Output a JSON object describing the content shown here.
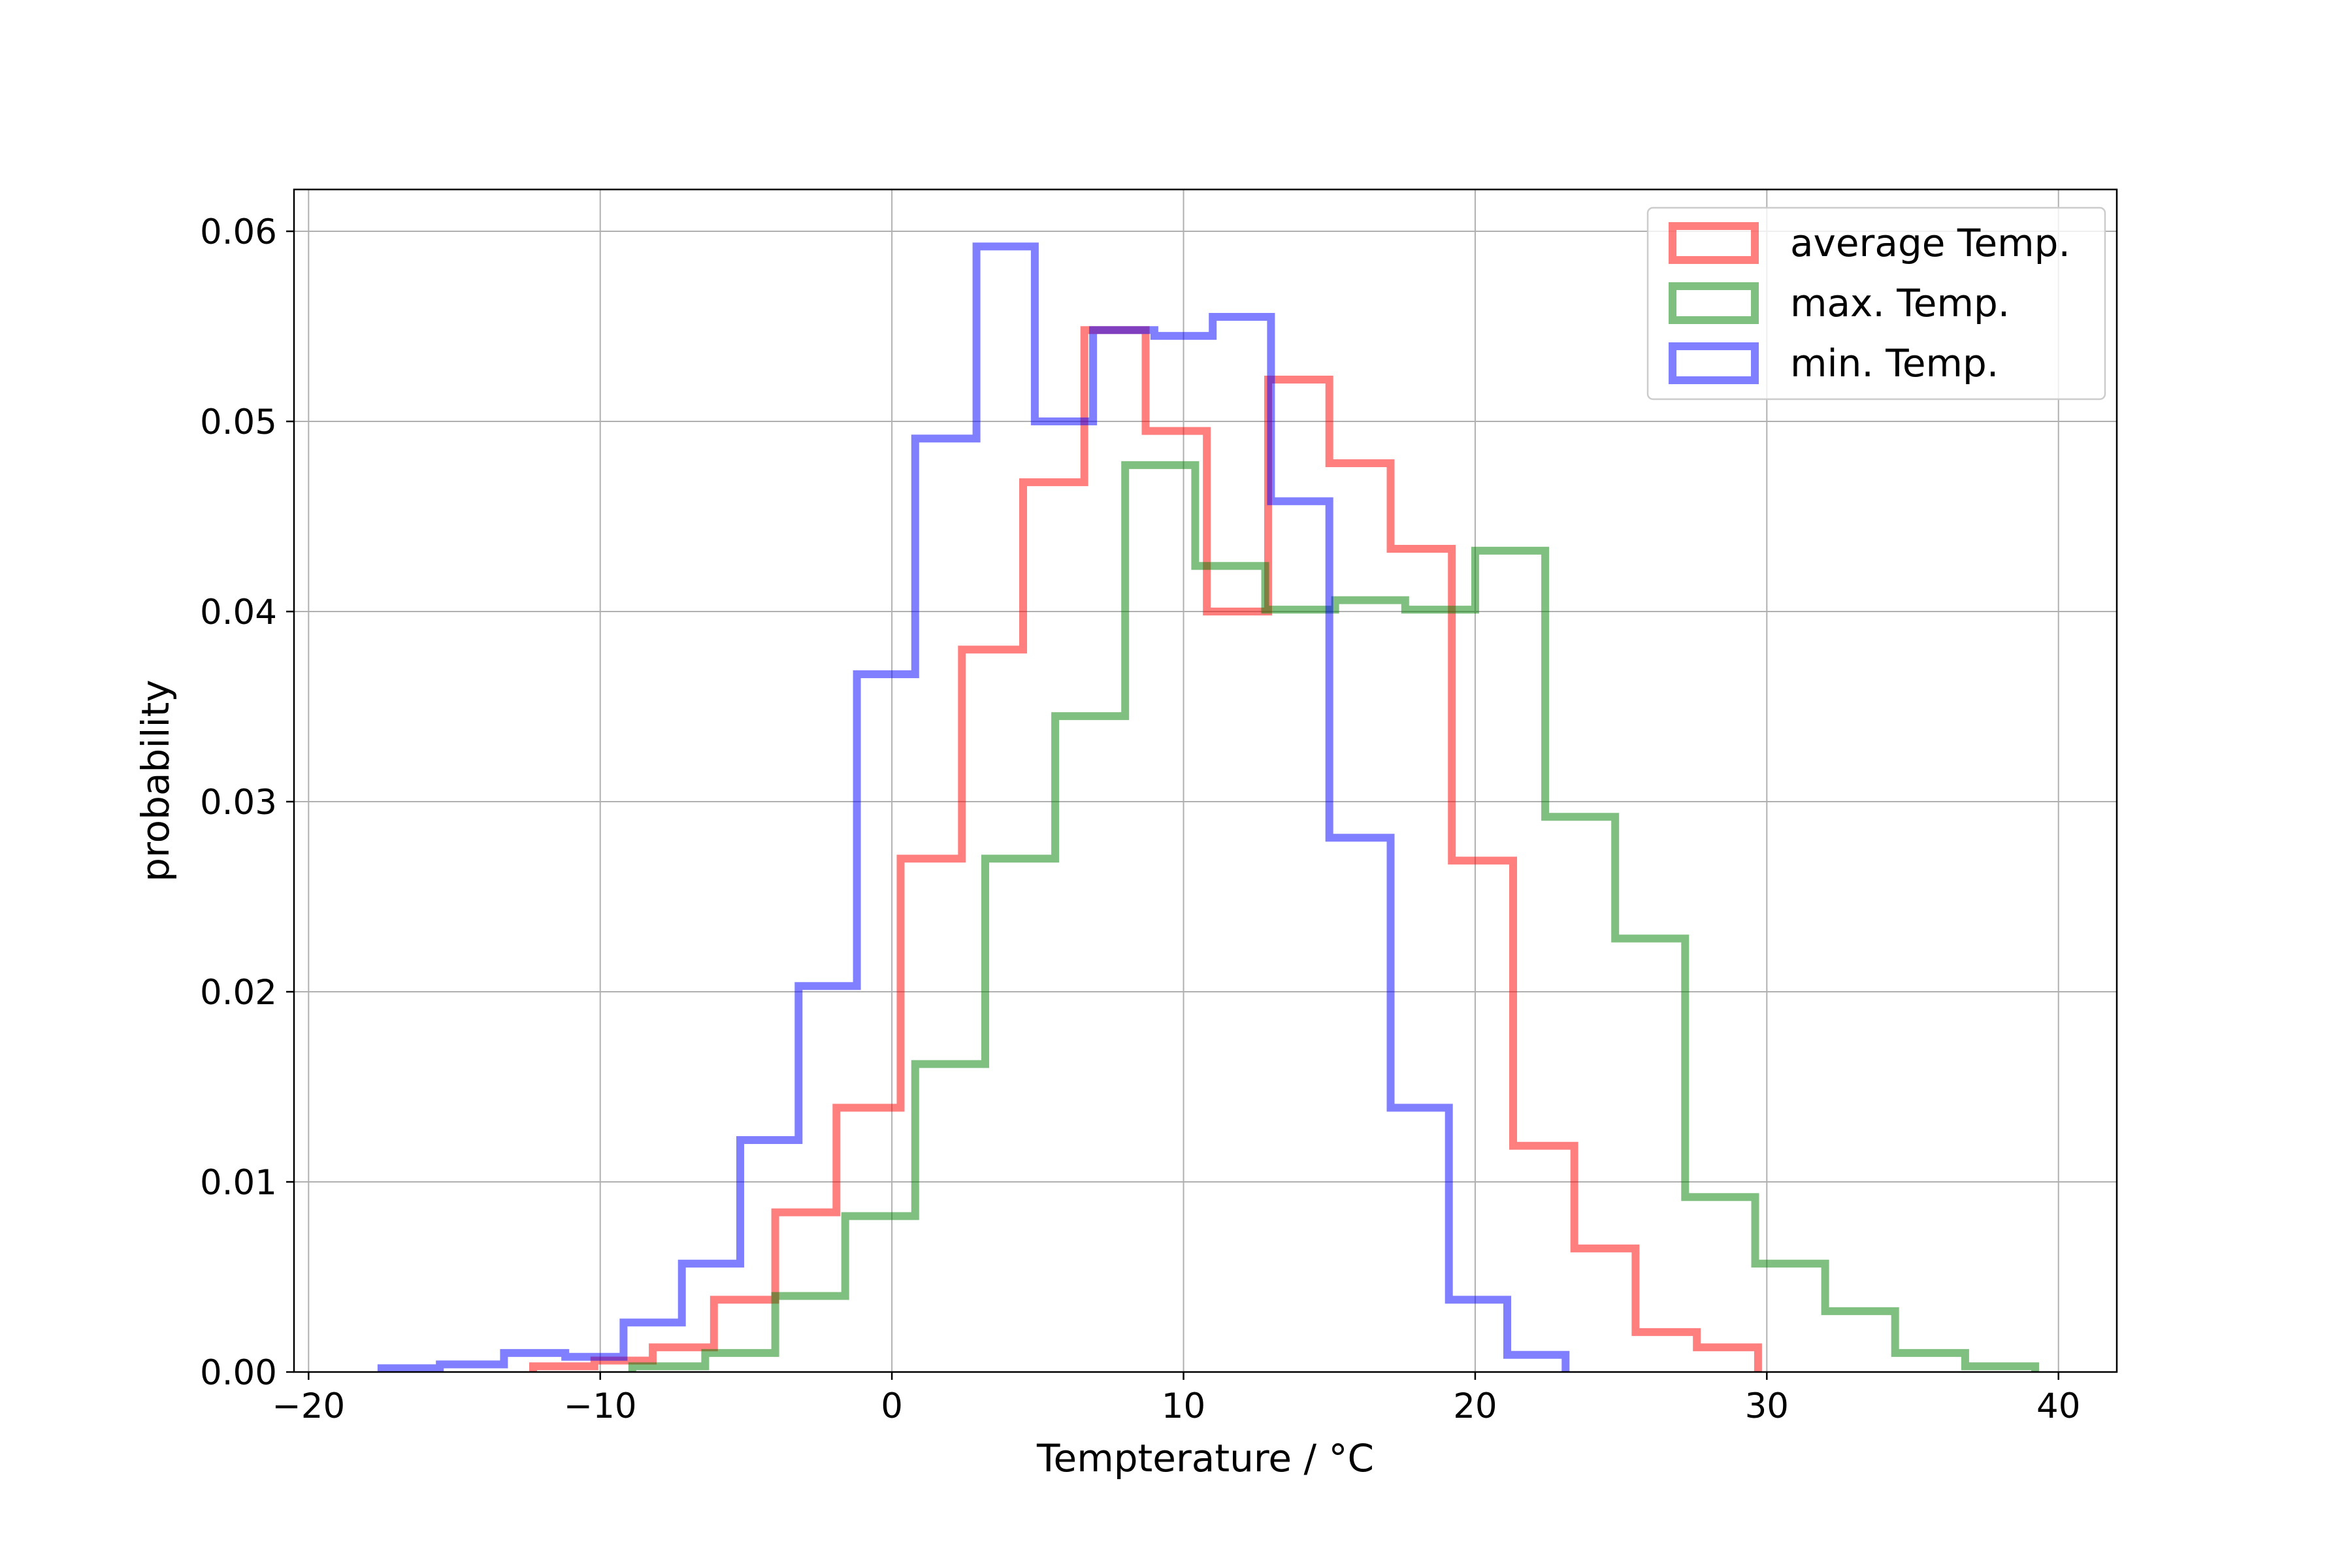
{
  "chart_data": {
    "type": "step-histogram",
    "title": "",
    "xlabel": "Tempterature / °C",
    "ylabel": "probability",
    "xlim": [
      -20.5,
      42
    ],
    "ylim": [
      0,
      0.0622
    ],
    "xticks": [
      -20,
      -10,
      0,
      10,
      20,
      30,
      40
    ],
    "xtick_labels": [
      "−20",
      "−10",
      "0",
      "10",
      "20",
      "30",
      "40"
    ],
    "yticks": [
      0,
      0.01,
      0.02,
      0.03,
      0.04,
      0.05,
      0.06
    ],
    "ytick_labels": [
      "0.00",
      "0.01",
      "0.02",
      "0.03",
      "0.04",
      "0.05",
      "0.06"
    ],
    "grid": true,
    "legend_position": "top-right",
    "series": [
      {
        "name": "average Temp.",
        "color": "#ff0000",
        "bin_edges": [
          -12.3,
          -10.2,
          -8.2,
          -6.1,
          -4.0,
          -1.9,
          0.3,
          2.4,
          4.5,
          6.6,
          8.7,
          10.8,
          12.9,
          15.0,
          17.1,
          19.2,
          21.3,
          23.4,
          25.5,
          27.6,
          29.7
        ],
        "probabilities": [
          0.0003,
          0.0006,
          0.0013,
          0.0038,
          0.0084,
          0.0139,
          0.027,
          0.038,
          0.0468,
          0.0548,
          0.0495,
          0.04,
          0.0522,
          0.0478,
          0.0433,
          0.0269,
          0.0119,
          0.0065,
          0.0021,
          0.0013
        ]
      },
      {
        "name": "max. Temp.",
        "color": "#008000",
        "bin_edges": [
          -8.9,
          -6.4,
          -4.0,
          -1.6,
          0.8,
          3.2,
          5.6,
          8.0,
          10.4,
          12.8,
          15.2,
          17.6,
          20.0,
          22.4,
          24.8,
          27.2,
          29.6,
          32.0,
          34.4,
          36.8,
          39.2
        ],
        "probabilities": [
          0.0003,
          0.001,
          0.004,
          0.0082,
          0.0162,
          0.027,
          0.0345,
          0.0477,
          0.0424,
          0.0401,
          0.0406,
          0.0401,
          0.0432,
          0.0292,
          0.0228,
          0.0092,
          0.0057,
          0.0032,
          0.001,
          0.0003
        ]
      },
      {
        "name": "min. Temp.",
        "color": "#0000ff",
        "bin_edges": [
          -17.5,
          -15.5,
          -13.3,
          -11.2,
          -9.2,
          -7.2,
          -5.2,
          -3.2,
          -1.2,
          0.8,
          2.9,
          4.9,
          6.9,
          9.0,
          11.0,
          13.0,
          15.0,
          17.1,
          19.1,
          21.1,
          23.1
        ],
        "probabilities": [
          0.0002,
          0.0004,
          0.001,
          0.0008,
          0.0026,
          0.0057,
          0.0122,
          0.0203,
          0.0367,
          0.0491,
          0.0592,
          0.05,
          0.0548,
          0.0545,
          0.0555,
          0.0458,
          0.0281,
          0.0139,
          0.0038,
          0.0009
        ]
      }
    ]
  }
}
